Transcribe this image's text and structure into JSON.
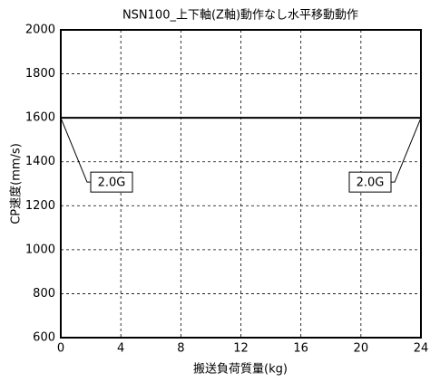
{
  "chart_data": {
    "type": "line",
    "title": "NSN100_上下軸(Z軸)動作なし水平移動動作",
    "x_label": "搬送負荷質量(kg)",
    "y_label": "CP速度(mm/s)",
    "x": [
      0,
      24
    ],
    "series": [
      {
        "color": "#000000",
        "values": [
          1600,
          1600
        ]
      }
    ],
    "xlim": [
      0,
      24
    ],
    "xticks": [
      0,
      4,
      8,
      12,
      16,
      20,
      24
    ],
    "ylim": [
      600,
      2000
    ],
    "yticks": [
      600,
      800,
      1000,
      1200,
      1400,
      1600,
      1800,
      2000
    ],
    "grid": true,
    "annotations": [
      {
        "text": "2.0G",
        "x": 0,
        "y": 1600
      },
      {
        "text": "2.0G",
        "x": 24,
        "y": 1600
      }
    ]
  }
}
